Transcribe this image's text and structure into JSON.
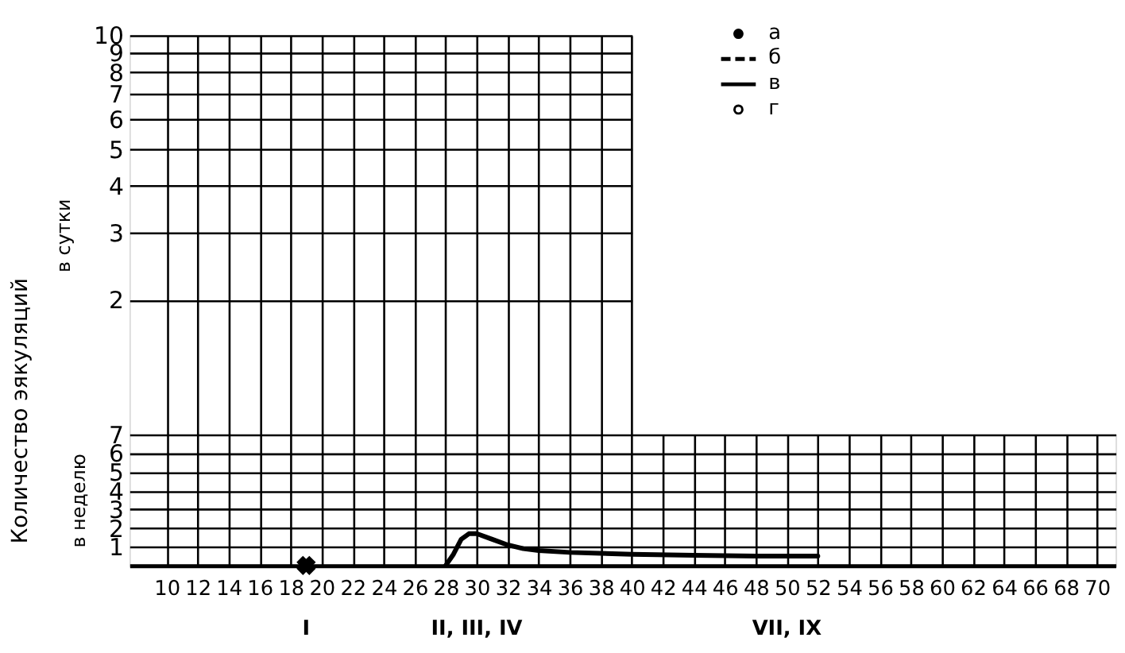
{
  "chart_data": [
    {
      "type": "line",
      "ylabel": "в сутки",
      "log": true,
      "ylim": [
        0.88,
        10
      ],
      "yticks": [
        2,
        3,
        4,
        5,
        6,
        7,
        8,
        9,
        10
      ],
      "categories": [
        null,
        null,
        null,
        null,
        null,
        null,
        null,
        null,
        null,
        null,
        null,
        null,
        null,
        null,
        null,
        null
      ],
      "tick_labels": "y",
      "grid": true
    },
    {
      "type": "line",
      "ylabel": "в неделю",
      "xlim": [
        7.6,
        71.2
      ],
      "ylim": [
        0,
        7
      ],
      "yticks": [
        1,
        2,
        3,
        4,
        5,
        6,
        7
      ],
      "xticks": [
        10,
        12,
        14,
        16,
        18,
        20,
        22,
        24,
        26,
        28,
        30,
        32,
        34,
        36,
        38,
        40,
        42,
        44,
        46,
        48,
        50,
        52,
        54,
        56,
        58,
        60,
        62,
        64,
        66,
        68,
        70
      ],
      "grid": true,
      "legend": "top right",
      "annotations": [
        "Количество эякуляций",
        "I",
        "II, III, IV",
        "VII, IX"
      ],
      "series": [
        {
          "name": "а",
          "type": "scatter",
          "marker": "circle",
          "color": "#000000"
        },
        {
          "name": "б",
          "type": "line",
          "line_style": "dashed",
          "color": "#000000"
        },
        {
          "name": "в",
          "type": "line",
          "line_style": "solid",
          "color": "#000000",
          "x": [
            28,
            28.5,
            29,
            29.5,
            30,
            31,
            32,
            33,
            34,
            36,
            40,
            44,
            48,
            52
          ],
          "values": [
            0,
            0.6,
            1.4,
            1.7,
            1.7,
            1.4,
            1.1,
            0.9,
            0.8,
            0.7,
            0.6,
            0.55,
            0.5,
            0.5
          ]
        },
        {
          "name": "г",
          "type": "scatter",
          "marker": "circle",
          "color": "#ffffff"
        },
        {
          "type": "scatter",
          "marker": "cross",
          "color": "#000000",
          "x": [
            19
          ],
          "values": [
            0
          ]
        }
      ]
    }
  ]
}
